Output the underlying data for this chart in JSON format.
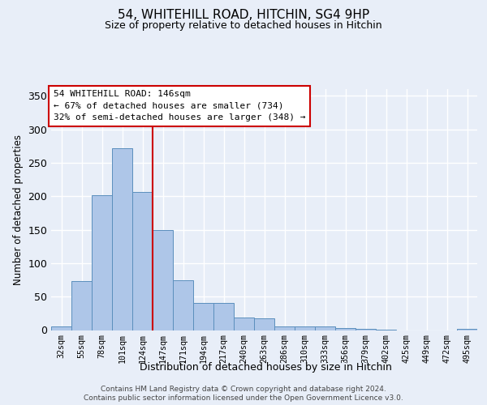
{
  "title1": "54, WHITEHILL ROAD, HITCHIN, SG4 9HP",
  "title2": "Size of property relative to detached houses in Hitchin",
  "xlabel": "Distribution of detached houses by size in Hitchin",
  "ylabel": "Number of detached properties",
  "categories": [
    "32sqm",
    "55sqm",
    "78sqm",
    "101sqm",
    "124sqm",
    "147sqm",
    "171sqm",
    "194sqm",
    "217sqm",
    "240sqm",
    "263sqm",
    "286sqm",
    "310sqm",
    "333sqm",
    "356sqm",
    "379sqm",
    "402sqm",
    "425sqm",
    "449sqm",
    "472sqm",
    "495sqm"
  ],
  "values": [
    6,
    73,
    201,
    272,
    206,
    149,
    75,
    40,
    40,
    19,
    18,
    6,
    6,
    5,
    3,
    2,
    1,
    0,
    0,
    0,
    2
  ],
  "bar_color": "#aec6e8",
  "bar_edge_color": "#5b8fbd",
  "vline_x_index": 5,
  "vline_color": "#cc0000",
  "annotation_text": "54 WHITEHILL ROAD: 146sqm\n← 67% of detached houses are smaller (734)\n32% of semi-detached houses are larger (348) →",
  "annotation_box_edge": "#cc0000",
  "yticks": [
    0,
    50,
    100,
    150,
    200,
    250,
    300,
    350
  ],
  "ylim": [
    0,
    360
  ],
  "background_color": "#e8eef8",
  "grid_color": "#ffffff",
  "footer_line1": "Contains HM Land Registry data © Crown copyright and database right 2024.",
  "footer_line2": "Contains public sector information licensed under the Open Government Licence v3.0."
}
